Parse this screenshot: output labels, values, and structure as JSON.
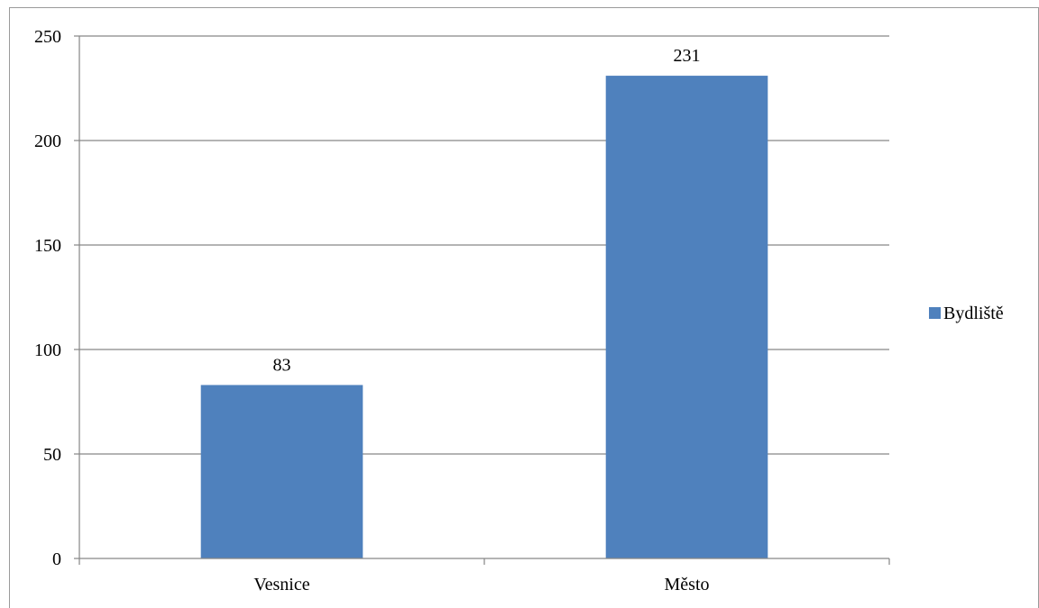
{
  "chart_data": {
    "type": "bar",
    "categories": [
      "Vesnice",
      "Město"
    ],
    "series": [
      {
        "name": "Bydliště",
        "values": [
          83,
          231
        ],
        "color": "#4f81bd"
      }
    ],
    "title": "",
    "xlabel": "",
    "ylabel": "",
    "ylim": [
      0,
      250
    ],
    "yticks": [
      "0",
      "50",
      "100",
      "150",
      "200",
      "250"
    ],
    "data_labels": [
      "83",
      "231"
    ],
    "grid": true,
    "legend_position": "right"
  }
}
